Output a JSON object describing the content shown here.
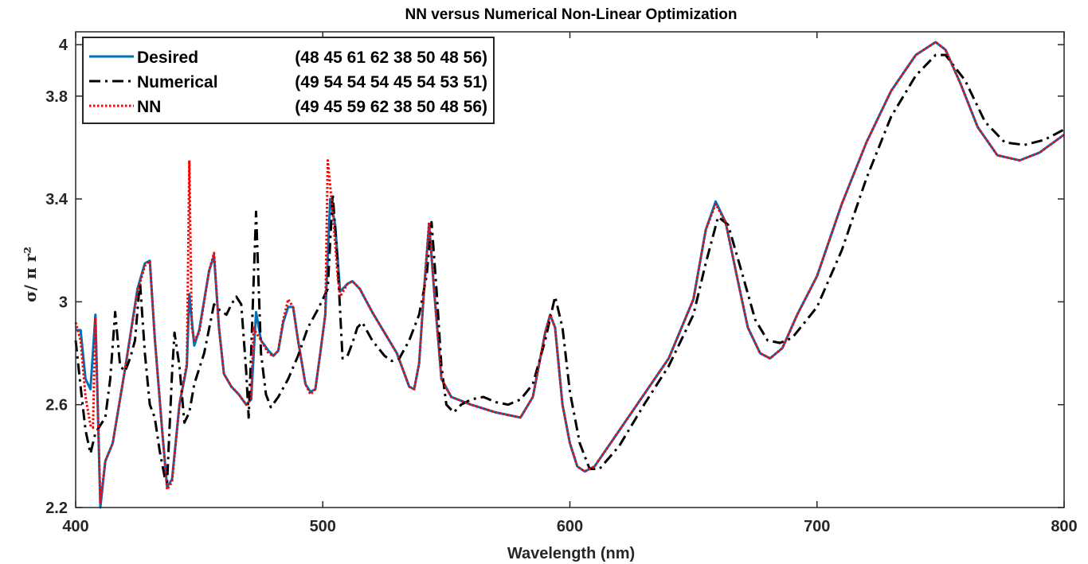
{
  "chart_data": {
    "type": "line",
    "title": "NN versus Numerical Non-Linear Optimization",
    "xlabel": "Wavelength (nm)",
    "ylabel": "σ/ π r²",
    "xlim": [
      400,
      800
    ],
    "ylim": [
      2.2,
      4.05
    ],
    "xticks": [
      400,
      500,
      600,
      700,
      800
    ],
    "xtick_labels": [
      "400",
      "500",
      "600",
      "700",
      "800"
    ],
    "yticks": [
      2.2,
      2.6,
      3,
      3.4,
      3.8,
      4
    ],
    "ytick_labels": [
      "2.2",
      "2.6",
      "3",
      "3.4",
      "3.8",
      "4"
    ],
    "grid": false,
    "legend_position": "top-left",
    "series": [
      {
        "name": "Desired",
        "legend_params": "(48 45 61 62 38 50 48 56)",
        "color": "#0072BD",
        "style": "solid",
        "points": [
          [
            400,
            2.89
          ],
          [
            402,
            2.89
          ],
          [
            404,
            2.7
          ],
          [
            406,
            2.66
          ],
          [
            408,
            2.95
          ],
          [
            410,
            2.2
          ],
          [
            412,
            2.38
          ],
          [
            415,
            2.45
          ],
          [
            420,
            2.74
          ],
          [
            425,
            3.05
          ],
          [
            428,
            3.15
          ],
          [
            430,
            3.16
          ],
          [
            432,
            2.86
          ],
          [
            435,
            2.5
          ],
          [
            437,
            2.28
          ],
          [
            439,
            2.31
          ],
          [
            442,
            2.6
          ],
          [
            445,
            2.75
          ],
          [
            446,
            3.03
          ],
          [
            448,
            2.83
          ],
          [
            450,
            2.89
          ],
          [
            454,
            3.12
          ],
          [
            456,
            3.18
          ],
          [
            458,
            2.9
          ],
          [
            460,
            2.72
          ],
          [
            463,
            2.67
          ],
          [
            466,
            2.64
          ],
          [
            469,
            2.6
          ],
          [
            471,
            2.62
          ],
          [
            473,
            2.96
          ],
          [
            475,
            2.85
          ],
          [
            478,
            2.81
          ],
          [
            480,
            2.79
          ],
          [
            482,
            2.81
          ],
          [
            484,
            2.92
          ],
          [
            486,
            2.98
          ],
          [
            488,
            2.98
          ],
          [
            490,
            2.85
          ],
          [
            493,
            2.68
          ],
          [
            495,
            2.65
          ],
          [
            497,
            2.66
          ],
          [
            499,
            2.8
          ],
          [
            501,
            2.95
          ],
          [
            503,
            3.4
          ],
          [
            505,
            3.3
          ],
          [
            507,
            3.04
          ],
          [
            510,
            3.07
          ],
          [
            512,
            3.08
          ],
          [
            515,
            3.05
          ],
          [
            520,
            2.96
          ],
          [
            525,
            2.88
          ],
          [
            530,
            2.8
          ],
          [
            535,
            2.67
          ],
          [
            537,
            2.66
          ],
          [
            539,
            2.76
          ],
          [
            541,
            3.05
          ],
          [
            543,
            3.3
          ],
          [
            545,
            3.05
          ],
          [
            548,
            2.7
          ],
          [
            552,
            2.63
          ],
          [
            560,
            2.6
          ],
          [
            570,
            2.57
          ],
          [
            580,
            2.55
          ],
          [
            585,
            2.63
          ],
          [
            590,
            2.88
          ],
          [
            592,
            2.95
          ],
          [
            594,
            2.9
          ],
          [
            597,
            2.6
          ],
          [
            600,
            2.45
          ],
          [
            603,
            2.36
          ],
          [
            606,
            2.34
          ],
          [
            610,
            2.36
          ],
          [
            620,
            2.5
          ],
          [
            640,
            2.78
          ],
          [
            650,
            3.01
          ],
          [
            655,
            3.28
          ],
          [
            659,
            3.39
          ],
          [
            663,
            3.31
          ],
          [
            668,
            3.08
          ],
          [
            672,
            2.9
          ],
          [
            677,
            2.8
          ],
          [
            681,
            2.78
          ],
          [
            686,
            2.82
          ],
          [
            692,
            2.95
          ],
          [
            700,
            3.1
          ],
          [
            710,
            3.38
          ],
          [
            720,
            3.62
          ],
          [
            730,
            3.82
          ],
          [
            740,
            3.96
          ],
          [
            748,
            4.01
          ],
          [
            752,
            3.98
          ],
          [
            758,
            3.85
          ],
          [
            765,
            3.68
          ],
          [
            773,
            3.57
          ],
          [
            782,
            3.55
          ],
          [
            790,
            3.58
          ],
          [
            800,
            3.65
          ]
        ]
      },
      {
        "name": "Numerical",
        "legend_params": "(49 54 54 54 45 54 53 51)",
        "color": "#000000",
        "style": "dashdot",
        "points": [
          [
            400,
            2.85
          ],
          [
            402,
            2.67
          ],
          [
            404,
            2.5
          ],
          [
            406,
            2.41
          ],
          [
            408,
            2.49
          ],
          [
            410,
            2.52
          ],
          [
            412,
            2.55
          ],
          [
            414,
            2.7
          ],
          [
            416,
            2.96
          ],
          [
            418,
            2.75
          ],
          [
            420,
            2.73
          ],
          [
            422,
            2.78
          ],
          [
            424,
            2.85
          ],
          [
            426,
            3.08
          ],
          [
            428,
            2.8
          ],
          [
            430,
            2.6
          ],
          [
            432,
            2.55
          ],
          [
            434,
            2.42
          ],
          [
            436,
            2.32
          ],
          [
            437,
            2.3
          ],
          [
            439,
            2.72
          ],
          [
            440,
            2.88
          ],
          [
            442,
            2.75
          ],
          [
            444,
            2.53
          ],
          [
            446,
            2.57
          ],
          [
            448,
            2.68
          ],
          [
            452,
            2.8
          ],
          [
            456,
            2.99
          ],
          [
            458,
            2.97
          ],
          [
            461,
            2.95
          ],
          [
            463,
            2.99
          ],
          [
            465,
            3.02
          ],
          [
            467,
            2.99
          ],
          [
            469,
            2.73
          ],
          [
            470,
            2.55
          ],
          [
            471,
            2.8
          ],
          [
            473,
            3.35
          ],
          [
            475,
            2.8
          ],
          [
            477,
            2.64
          ],
          [
            479,
            2.59
          ],
          [
            482,
            2.63
          ],
          [
            486,
            2.7
          ],
          [
            490,
            2.79
          ],
          [
            494,
            2.9
          ],
          [
            498,
            2.97
          ],
          [
            502,
            3.05
          ],
          [
            504,
            3.42
          ],
          [
            506,
            3.15
          ],
          [
            508,
            2.78
          ],
          [
            510,
            2.79
          ],
          [
            512,
            2.84
          ],
          [
            514,
            2.9
          ],
          [
            516,
            2.92
          ],
          [
            520,
            2.85
          ],
          [
            525,
            2.79
          ],
          [
            528,
            2.77
          ],
          [
            531,
            2.78
          ],
          [
            535,
            2.85
          ],
          [
            539,
            2.95
          ],
          [
            542,
            3.1
          ],
          [
            544,
            3.31
          ],
          [
            546,
            3.05
          ],
          [
            548,
            2.75
          ],
          [
            550,
            2.6
          ],
          [
            553,
            2.57
          ],
          [
            556,
            2.6
          ],
          [
            560,
            2.62
          ],
          [
            565,
            2.63
          ],
          [
            570,
            2.61
          ],
          [
            575,
            2.6
          ],
          [
            580,
            2.62
          ],
          [
            585,
            2.68
          ],
          [
            590,
            2.85
          ],
          [
            594,
            3.02
          ],
          [
            597,
            2.9
          ],
          [
            600,
            2.65
          ],
          [
            604,
            2.45
          ],
          [
            608,
            2.35
          ],
          [
            612,
            2.35
          ],
          [
            620,
            2.44
          ],
          [
            630,
            2.6
          ],
          [
            640,
            2.75
          ],
          [
            650,
            2.95
          ],
          [
            655,
            3.15
          ],
          [
            660,
            3.33
          ],
          [
            664,
            3.3
          ],
          [
            670,
            3.1
          ],
          [
            675,
            2.93
          ],
          [
            680,
            2.85
          ],
          [
            685,
            2.84
          ],
          [
            690,
            2.86
          ],
          [
            700,
            2.98
          ],
          [
            710,
            3.2
          ],
          [
            720,
            3.48
          ],
          [
            730,
            3.72
          ],
          [
            740,
            3.88
          ],
          [
            748,
            3.96
          ],
          [
            752,
            3.96
          ],
          [
            760,
            3.86
          ],
          [
            768,
            3.7
          ],
          [
            776,
            3.62
          ],
          [
            784,
            3.61
          ],
          [
            792,
            3.63
          ],
          [
            800,
            3.67
          ]
        ]
      },
      {
        "name": "NN",
        "legend_params": "(49 45 59 62 38 50 48 56)",
        "color": "#FF0000",
        "style": "dotted",
        "points": [
          [
            400,
            2.92
          ],
          [
            402,
            2.85
          ],
          [
            404,
            2.63
          ],
          [
            406,
            2.52
          ],
          [
            407,
            2.51
          ],
          [
            408,
            2.94
          ],
          [
            410,
            2.22
          ],
          [
            412,
            2.38
          ],
          [
            415,
            2.45
          ],
          [
            420,
            2.74
          ],
          [
            425,
            3.04
          ],
          [
            428,
            3.14
          ],
          [
            430,
            3.16
          ],
          [
            432,
            2.86
          ],
          [
            435,
            2.5
          ],
          [
            437,
            2.27
          ],
          [
            439,
            2.3
          ],
          [
            442,
            2.6
          ],
          [
            445,
            2.76
          ],
          [
            446,
            3.55
          ],
          [
            447,
            2.9
          ],
          [
            448,
            2.85
          ],
          [
            450,
            2.88
          ],
          [
            454,
            3.12
          ],
          [
            456,
            3.19
          ],
          [
            458,
            2.9
          ],
          [
            460,
            2.72
          ],
          [
            463,
            2.67
          ],
          [
            466,
            2.64
          ],
          [
            469,
            2.6
          ],
          [
            471,
            2.62
          ],
          [
            472,
            2.9
          ],
          [
            473,
            2.88
          ],
          [
            475,
            2.85
          ],
          [
            478,
            2.8
          ],
          [
            480,
            2.79
          ],
          [
            482,
            2.81
          ],
          [
            484,
            2.93
          ],
          [
            486,
            3.01
          ],
          [
            488,
            2.98
          ],
          [
            490,
            2.85
          ],
          [
            493,
            2.68
          ],
          [
            495,
            2.64
          ],
          [
            497,
            2.66
          ],
          [
            499,
            2.8
          ],
          [
            501,
            2.95
          ],
          [
            502,
            3.55
          ],
          [
            504,
            3.35
          ],
          [
            506,
            3.1
          ],
          [
            507,
            3.02
          ],
          [
            510,
            3.07
          ],
          [
            512,
            3.08
          ],
          [
            515,
            3.05
          ],
          [
            520,
            2.96
          ],
          [
            525,
            2.88
          ],
          [
            530,
            2.8
          ],
          [
            535,
            2.67
          ],
          [
            537,
            2.66
          ],
          [
            539,
            2.76
          ],
          [
            541,
            3.05
          ],
          [
            543,
            3.31
          ],
          [
            545,
            3.05
          ],
          [
            548,
            2.7
          ],
          [
            552,
            2.63
          ],
          [
            560,
            2.6
          ],
          [
            570,
            2.57
          ],
          [
            580,
            2.55
          ],
          [
            585,
            2.63
          ],
          [
            590,
            2.88
          ],
          [
            592,
            2.95
          ],
          [
            594,
            2.9
          ],
          [
            597,
            2.6
          ],
          [
            600,
            2.45
          ],
          [
            603,
            2.36
          ],
          [
            606,
            2.34
          ],
          [
            610,
            2.36
          ],
          [
            620,
            2.5
          ],
          [
            640,
            2.78
          ],
          [
            650,
            3.01
          ],
          [
            655,
            3.28
          ],
          [
            659,
            3.38
          ],
          [
            663,
            3.31
          ],
          [
            668,
            3.08
          ],
          [
            672,
            2.9
          ],
          [
            677,
            2.8
          ],
          [
            681,
            2.78
          ],
          [
            686,
            2.82
          ],
          [
            692,
            2.95
          ],
          [
            700,
            3.1
          ],
          [
            710,
            3.38
          ],
          [
            720,
            3.62
          ],
          [
            730,
            3.82
          ],
          [
            740,
            3.96
          ],
          [
            748,
            4.01
          ],
          [
            752,
            3.98
          ],
          [
            758,
            3.85
          ],
          [
            765,
            3.68
          ],
          [
            773,
            3.57
          ],
          [
            782,
            3.55
          ],
          [
            790,
            3.58
          ],
          [
            800,
            3.65
          ]
        ]
      }
    ]
  }
}
